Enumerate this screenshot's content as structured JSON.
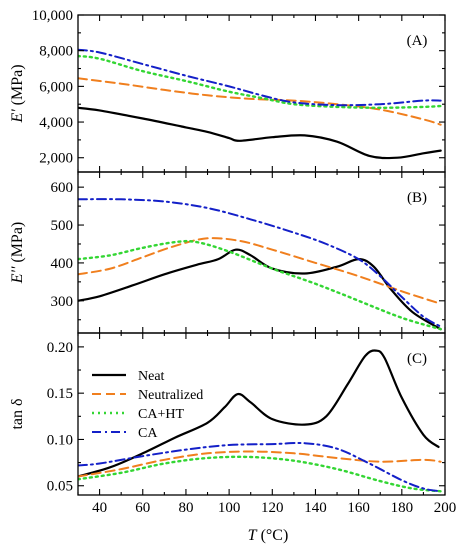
{
  "figure": {
    "xlabel_italic": "T",
    "xlabel_unit": " (°C)"
  },
  "legend": [
    {
      "label": "Neat",
      "color": "#000000",
      "dash": "",
      "width": 2.2
    },
    {
      "label": "Neutralized",
      "color": "#f07f1e",
      "dash": "9,5",
      "width": 2
    },
    {
      "label": "CA+HT",
      "color": "#33d633",
      "dash": "2,4",
      "width": 2.4
    },
    {
      "label": "CA",
      "color": "#1420c8",
      "dash": "9,4,2,4",
      "width": 2
    }
  ],
  "chart_data": [
    {
      "type": "line",
      "tag": "(A)",
      "ylabel_italic": "E'",
      "ylabel_unit": " (MPa)",
      "xlim": [
        30,
        200
      ],
      "ylim": [
        1200,
        10000
      ],
      "xticks": [
        40,
        60,
        80,
        100,
        120,
        140,
        160,
        180,
        200
      ],
      "yticks": [
        2000,
        4000,
        6000,
        8000,
        10000
      ],
      "yticklabels": [
        "2,000",
        "4,000",
        "6,000",
        "8,000",
        "10,000"
      ],
      "series": [
        {
          "name": "Neat",
          "x": [
            30,
            40,
            60,
            80,
            90,
            100,
            105,
            120,
            135,
            150,
            165,
            178,
            190,
            198
          ],
          "y": [
            4800,
            4650,
            4200,
            3700,
            3450,
            3100,
            2950,
            3150,
            3250,
            2900,
            2100,
            2000,
            2250,
            2400
          ]
        },
        {
          "name": "Neutralized",
          "x": [
            30,
            50,
            70,
            90,
            110,
            130,
            150,
            170,
            190,
            198
          ],
          "y": [
            6450,
            6150,
            5800,
            5500,
            5300,
            5200,
            5000,
            4700,
            4150,
            3850
          ]
        },
        {
          "name": "CA+HT",
          "x": [
            30,
            40,
            60,
            80,
            100,
            115,
            130,
            150,
            170,
            190,
            198
          ],
          "y": [
            7700,
            7550,
            6850,
            6300,
            5700,
            5350,
            5000,
            4850,
            4800,
            4850,
            4900
          ]
        },
        {
          "name": "CA",
          "x": [
            30,
            40,
            60,
            80,
            100,
            115,
            130,
            150,
            170,
            190,
            198
          ],
          "y": [
            8050,
            7900,
            7250,
            6600,
            6000,
            5500,
            5100,
            4950,
            5000,
            5200,
            5200
          ]
        }
      ]
    },
    {
      "type": "line",
      "tag": "(B)",
      "ylabel_italic": "E''",
      "ylabel_unit": " (MPa)",
      "xlim": [
        30,
        200
      ],
      "ylim": [
        215,
        640
      ],
      "xticks": [
        40,
        60,
        80,
        100,
        120,
        140,
        160,
        180,
        200
      ],
      "yticks": [
        300,
        400,
        500,
        600
      ],
      "yticklabels": [
        "300",
        "400",
        "500",
        "600"
      ],
      "series": [
        {
          "name": "Neat",
          "x": [
            30,
            40,
            55,
            70,
            85,
            95,
            103,
            110,
            120,
            135,
            150,
            160,
            167,
            175,
            185,
            198
          ],
          "y": [
            300,
            312,
            340,
            370,
            395,
            410,
            435,
            420,
            385,
            372,
            390,
            410,
            390,
            330,
            270,
            225
          ]
        },
        {
          "name": "Neutralized",
          "x": [
            30,
            45,
            60,
            75,
            90,
            105,
            120,
            140,
            160,
            180,
            198
          ],
          "y": [
            370,
            385,
            415,
            445,
            465,
            458,
            435,
            400,
            365,
            325,
            292
          ]
        },
        {
          "name": "CA+HT",
          "x": [
            30,
            45,
            60,
            75,
            85,
            100,
            120,
            140,
            160,
            180,
            198
          ],
          "y": [
            410,
            420,
            440,
            455,
            455,
            430,
            385,
            345,
            300,
            255,
            225
          ]
        },
        {
          "name": "CA",
          "x": [
            30,
            50,
            70,
            90,
            110,
            130,
            145,
            160,
            170,
            180,
            190,
            198
          ],
          "y": [
            568,
            568,
            562,
            545,
            515,
            480,
            450,
            410,
            365,
            310,
            258,
            232
          ]
        }
      ]
    },
    {
      "type": "line",
      "tag": "(C)",
      "ylabel_italic": "",
      "ylabel_unit": "tan δ",
      "xlim": [
        30,
        200
      ],
      "ylim": [
        0.04,
        0.215
      ],
      "xticks": [
        40,
        60,
        80,
        100,
        120,
        140,
        160,
        180,
        200
      ],
      "xticklabels": [
        "40",
        "60",
        "80",
        "100",
        "120",
        "140",
        "160",
        "180",
        "200"
      ],
      "yticks": [
        0.05,
        0.1,
        0.15,
        0.2
      ],
      "yticklabels": [
        "0.05",
        "0.10",
        "0.15",
        "0.20"
      ],
      "series": [
        {
          "name": "Neat",
          "x": [
            30,
            45,
            60,
            75,
            90,
            98,
            104,
            110,
            120,
            135,
            145,
            155,
            163,
            168,
            172,
            180,
            190,
            197
          ],
          "y": [
            0.06,
            0.07,
            0.085,
            0.102,
            0.118,
            0.135,
            0.149,
            0.14,
            0.122,
            0.116,
            0.125,
            0.16,
            0.19,
            0.196,
            0.188,
            0.145,
            0.105,
            0.092
          ]
        },
        {
          "name": "Neutralized",
          "x": [
            30,
            50,
            70,
            90,
            110,
            130,
            150,
            170,
            190,
            198
          ],
          "y": [
            0.06,
            0.068,
            0.078,
            0.085,
            0.087,
            0.085,
            0.08,
            0.076,
            0.078,
            0.076
          ]
        },
        {
          "name": "CA+HT",
          "x": [
            30,
            50,
            70,
            90,
            110,
            130,
            150,
            170,
            185,
            198
          ],
          "y": [
            0.057,
            0.064,
            0.074,
            0.08,
            0.081,
            0.077,
            0.068,
            0.055,
            0.047,
            0.044
          ]
        },
        {
          "name": "CA",
          "x": [
            30,
            40,
            60,
            80,
            100,
            120,
            135,
            150,
            165,
            180,
            190,
            198
          ],
          "y": [
            0.072,
            0.074,
            0.082,
            0.089,
            0.094,
            0.095,
            0.096,
            0.09,
            0.074,
            0.056,
            0.047,
            0.044
          ]
        }
      ]
    }
  ]
}
